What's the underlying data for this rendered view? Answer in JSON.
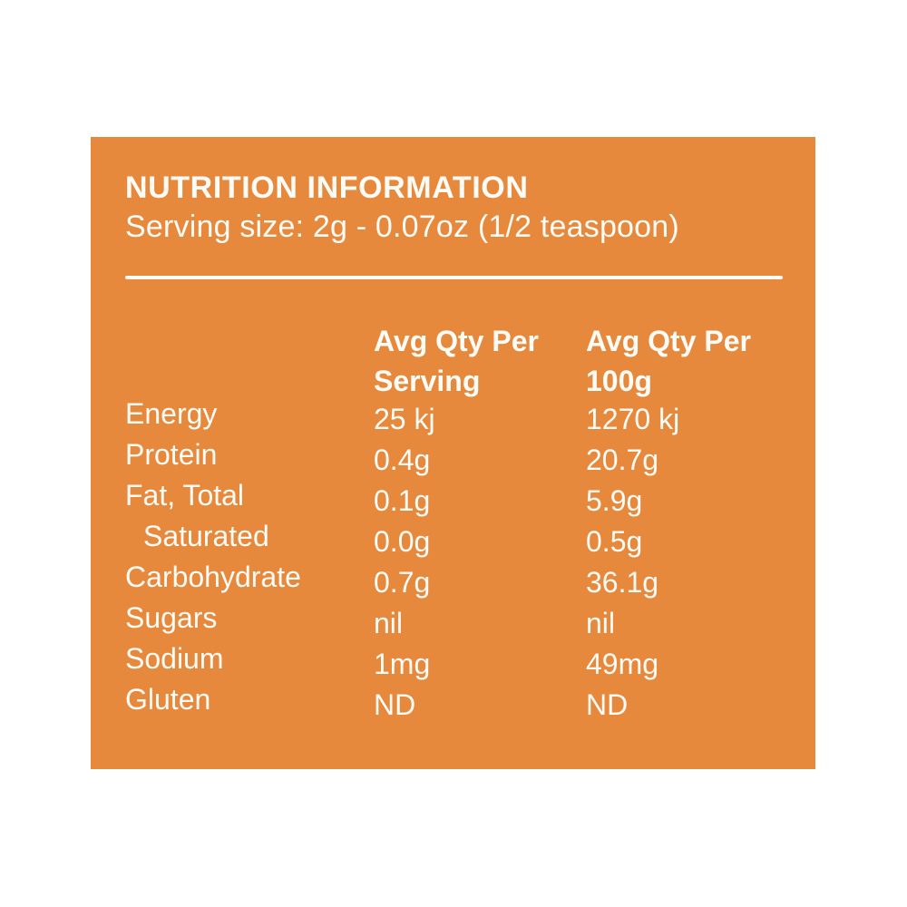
{
  "panel": {
    "title": "NUTRITION INFORMATION",
    "serving_size": "Serving size: 2g - 0.07oz (1/2 teaspoon)"
  },
  "table": {
    "columns": [
      {
        "line1": "Avg Qty Per",
        "line2": "Serving"
      },
      {
        "line1": "Avg Qty Per",
        "line2": "100g"
      }
    ],
    "rows": [
      {
        "label": "Energy",
        "per_serving": "25 kj",
        "per_100g": "1270 kj"
      },
      {
        "label": "Protein",
        "per_serving": "0.4g",
        "per_100g": "20.7g"
      },
      {
        "label": "Fat, Total",
        "per_serving": "0.1g",
        "per_100g": "5.9g"
      },
      {
        "label": "Saturated",
        "per_serving": "0.0g",
        "per_100g": "0.5g"
      },
      {
        "label": "Carbohydrate",
        "per_serving": "0.7g",
        "per_100g": "36.1g"
      },
      {
        "label": "Sugars",
        "per_serving": "nil",
        "per_100g": "nil"
      },
      {
        "label": "Sodium",
        "per_serving": "1mg",
        "per_100g": "49mg"
      },
      {
        "label": "Gluten",
        "per_serving": "ND",
        "per_100g": "ND"
      }
    ]
  },
  "colors": {
    "page-bg": "#FFFFFF",
    "panel-bg": "#E6893C",
    "panel-text": "#FCFBF6"
  }
}
